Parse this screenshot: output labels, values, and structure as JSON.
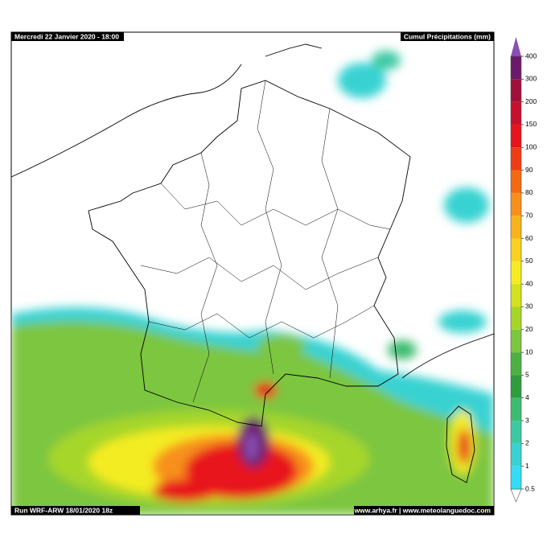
{
  "header": {
    "date": "Mercredi 22 Janvier 2020 - 18:00",
    "product": "Cumul Précipitations (mm)"
  },
  "footer": {
    "run": "Run WRF-ARW 18/01/2020 18z",
    "credit": "www.arhya.fr | www.meteolanguedoc.com"
  },
  "colorbar": {
    "levels": [
      0.5,
      1,
      2,
      3,
      4,
      5,
      10,
      20,
      30,
      40,
      50,
      60,
      70,
      80,
      90,
      100,
      150,
      200,
      300,
      400
    ],
    "colors": [
      "#34dcf6",
      "#38d2d2",
      "#3ccaa4",
      "#3cbc70",
      "#2e9e3c",
      "#4cb042",
      "#7cc640",
      "#a6d62a",
      "#d2e21e",
      "#f4ec20",
      "#f8d21e",
      "#f8b21c",
      "#f7901a",
      "#f46a12",
      "#f03c14",
      "#e8141c",
      "#c8102e",
      "#a0103a",
      "#6b1a6b",
      "#8a4fb5"
    ]
  }
}
